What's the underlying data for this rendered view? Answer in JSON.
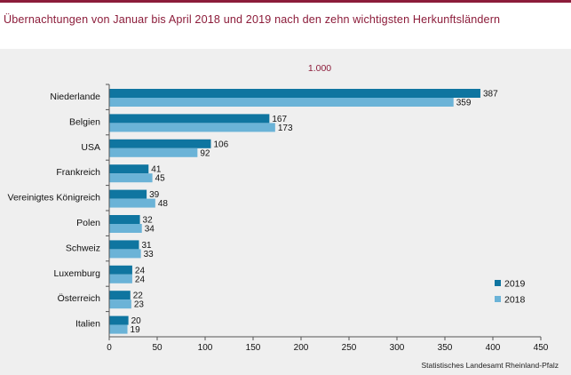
{
  "title": "Übernachtungen von Januar bis April 2018 und 2019 nach den zehn wichtigsten Herkunftsländern",
  "unit_label": "1.000",
  "source": "Statistisches Landesamt Rheinland-Pfalz",
  "colors": {
    "2019": "#0f75a0",
    "2018": "#6bb3d7",
    "accent": "#8c1c3a"
  },
  "chart_data": {
    "type": "bar",
    "orientation": "horizontal",
    "title": "Übernachtungen von Januar bis April 2018 und 2019 nach den zehn wichtigsten Herkunftsländern",
    "ylabel": "1.000",
    "categories": [
      "Niederlande",
      "Belgien",
      "USA",
      "Frankreich",
      "Vereinigtes Königreich",
      "Polen",
      "Schweiz",
      "Luxemburg",
      "Österreich",
      "Italien"
    ],
    "series": [
      {
        "name": "2019",
        "values": [
          387,
          167,
          106,
          41,
          39,
          32,
          31,
          24,
          22,
          20
        ]
      },
      {
        "name": "2018",
        "values": [
          359,
          173,
          92,
          45,
          48,
          34,
          33,
          24,
          23,
          19
        ]
      }
    ],
    "xlim": [
      0,
      450
    ],
    "xticks": [
      0,
      50,
      100,
      150,
      200,
      250,
      300,
      350,
      400,
      450
    ],
    "grid": false,
    "legend_position": "bottom-right"
  }
}
